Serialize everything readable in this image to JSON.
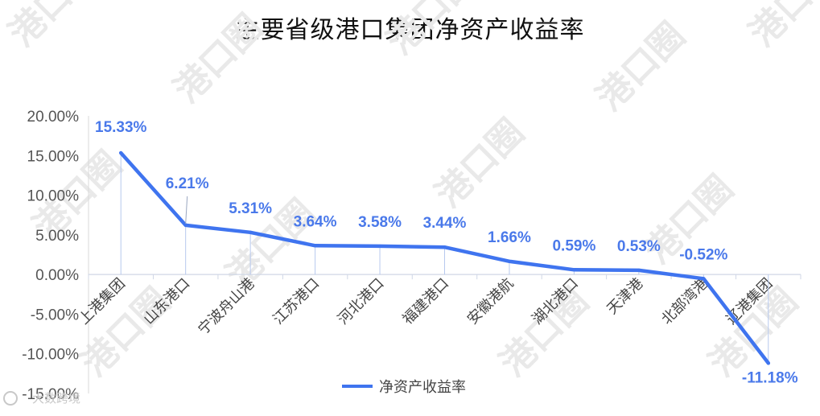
{
  "chart_data": {
    "type": "line",
    "title": "主要省级港口集团净资产收益率",
    "categories": [
      "上港集团",
      "山东港口",
      "宁波舟山港",
      "江苏港口",
      "河北港口",
      "福建港口",
      "安徽港航",
      "湖北港口",
      "天津港",
      "北部湾港",
      "辽港集团"
    ],
    "series": [
      {
        "name": "净资产收益率",
        "values": [
          15.33,
          6.21,
          5.31,
          3.64,
          3.58,
          3.44,
          1.66,
          0.59,
          0.53,
          -0.52,
          -11.18
        ],
        "labels": [
          "15.33%",
          "6.21%",
          "5.31%",
          "3.64%",
          "3.58%",
          "3.44%",
          "1.66%",
          "0.59%",
          "0.53%",
          "-0.52%",
          "-11.18%"
        ]
      }
    ],
    "ylim": [
      -15,
      20
    ],
    "yticks": [
      "20.00%",
      "15.00%",
      "10.00%",
      "5.00%",
      "0.00%",
      "-5.00%",
      "-10.00%",
      "-15.00%"
    ],
    "ytick_values": [
      20,
      15,
      10,
      5,
      0,
      -5,
      -10,
      -15
    ],
    "xlabel": "",
    "ylabel": "",
    "legend_position": "bottom",
    "grid": false,
    "colors": {
      "line": "#3f74ef",
      "label": "#4a79ea",
      "drop_line": "#b7c9ee"
    }
  },
  "watermark": "港口圈",
  "footer": {
    "text": "大数跨境"
  }
}
